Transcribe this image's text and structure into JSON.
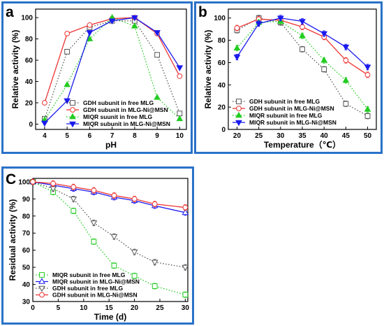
{
  "chart_data": [
    {
      "type": "line",
      "panel_label": "a",
      "xlabel": "pH",
      "ylabel": "Relative activity (%)",
      "xlim": [
        3.6,
        10.3
      ],
      "ylim": [
        -5,
        108
      ],
      "xticks": [
        4,
        5,
        6,
        7,
        8,
        9,
        10
      ],
      "yticks": [
        0,
        20,
        40,
        60,
        80,
        100
      ],
      "legend_position": "bottom-center",
      "series": [
        {
          "name": "GDH subunit in free MLG",
          "color": "#555555",
          "style": "dot",
          "marker": "square-open",
          "x": [
            4,
            5,
            6,
            7,
            8,
            9,
            10
          ],
          "y": [
            5,
            68,
            91,
            97,
            97,
            65,
            10
          ]
        },
        {
          "name": "GDH subunit in MLG-Ni@MSN",
          "color": "#ee3333",
          "style": "solid",
          "marker": "circle-open",
          "x": [
            4,
            5,
            6,
            7,
            8,
            9,
            10
          ],
          "y": [
            20,
            85,
            93,
            99,
            100,
            85,
            45
          ]
        },
        {
          "name": "MIQR suunit in free MLG",
          "color": "#22cc22",
          "style": "dot",
          "marker": "triangle-filled",
          "x": [
            4,
            5,
            6,
            7,
            8,
            9,
            10
          ],
          "y": [
            4,
            37,
            80,
            100,
            92,
            25,
            5
          ]
        },
        {
          "name": "MIQR subunit in MLG-Ni@MSN",
          "color": "#1a1aee",
          "style": "solid",
          "marker": "triangle-down-filled",
          "x": [
            4,
            5,
            6,
            7,
            8,
            9,
            10
          ],
          "y": [
            1,
            22,
            86,
            97,
            100,
            86,
            53
          ]
        }
      ]
    },
    {
      "type": "line",
      "panel_label": "b",
      "xlabel": "Temperature（℃）",
      "ylabel": "Relative activity (%)",
      "xlim": [
        18,
        52
      ],
      "ylim": [
        0,
        108
      ],
      "xticks": [
        20,
        25,
        30,
        35,
        40,
        45,
        50
      ],
      "yticks": [
        0,
        20,
        40,
        60,
        80,
        100
      ],
      "legend_position": "bottom-left",
      "series": [
        {
          "name": "GDH subunit in free MLG",
          "color": "#555555",
          "style": "dot",
          "marker": "square-open",
          "x": [
            20,
            25,
            30,
            35,
            40,
            45,
            50
          ],
          "y": [
            89,
            100,
            96,
            72,
            54,
            23,
            12
          ]
        },
        {
          "name": "GDH subunit in MLG-Ni@MSN",
          "color": "#ee3333",
          "style": "solid",
          "marker": "circle-open",
          "x": [
            20,
            25,
            30,
            35,
            40,
            45,
            50
          ],
          "y": [
            91,
            99,
            98,
            92,
            83,
            62,
            49
          ]
        },
        {
          "name": "MIQR subunit in free MLG",
          "color": "#22cc22",
          "style": "dot",
          "marker": "triangle-filled",
          "x": [
            20,
            25,
            30,
            35,
            40,
            45,
            50
          ],
          "y": [
            73,
            96,
            97,
            84,
            62,
            44,
            18
          ]
        },
        {
          "name": "MIQR subunit in MLG-Ni@MSN",
          "color": "#1a1aee",
          "style": "solid",
          "marker": "triangle-down-filled",
          "x": [
            20,
            25,
            30,
            35,
            40,
            45,
            50
          ],
          "y": [
            65,
            95,
            100,
            97,
            86,
            74,
            56
          ]
        }
      ]
    },
    {
      "type": "line",
      "panel_label": "C",
      "xlabel": "Time (d)",
      "ylabel": "Residual activity (%)",
      "xlim": [
        0,
        30.5
      ],
      "ylim": [
        30,
        102
      ],
      "xticks": [
        0,
        5,
        10,
        15,
        20,
        25,
        30
      ],
      "yticks": [
        30,
        40,
        50,
        60,
        70,
        80,
        90,
        100
      ],
      "legend_position": "bottom-left",
      "series": [
        {
          "name": "MIQR subunit in free MLG",
          "color": "#22cc22",
          "style": "dot",
          "marker": "square-open",
          "x": [
            0,
            4,
            8,
            12,
            16,
            20,
            24,
            30
          ],
          "y": [
            100,
            94,
            83,
            65,
            51,
            45,
            39,
            34
          ]
        },
        {
          "name": "MIQR subunit in MLG-Ni@MSN",
          "color": "#1a1aee",
          "style": "solid",
          "marker": "triangle-open",
          "x": [
            0,
            4,
            8,
            12,
            16,
            20,
            24,
            30
          ],
          "y": [
            100,
            98,
            96,
            94,
            91,
            89,
            86,
            82
          ]
        },
        {
          "name": "GDH subunit in free MLG",
          "color": "#555555",
          "style": "dot",
          "marker": "triangle-down-open",
          "x": [
            0,
            4,
            8,
            12,
            16,
            20,
            24,
            30
          ],
          "y": [
            100,
            96,
            90,
            76,
            68,
            59,
            53,
            50
          ]
        },
        {
          "name": "GDH subunit in MLG-Ni@MSN",
          "color": "#ee3333",
          "style": "solid",
          "marker": "circle-open",
          "x": [
            0,
            4,
            8,
            12,
            16,
            20,
            24,
            30
          ],
          "y": [
            100,
            99,
            97,
            95,
            92,
            90,
            87,
            85
          ]
        }
      ]
    }
  ]
}
